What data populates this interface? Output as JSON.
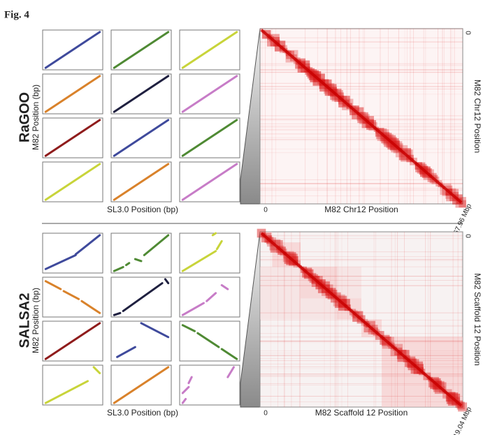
{
  "figure_label": "Fig. 4",
  "panels": [
    {
      "name": "RaGOO",
      "dotplot": {
        "y_label": "M82 Position (bp)",
        "x_label": "SL3.0 Position (bp)"
      },
      "heatmap": {
        "x_label": "M82 Chr12 Position",
        "y_label": "M82 Chr12 Position",
        "origin_x": "0",
        "origin_y": "0",
        "end_label": "67.96 Mbp"
      }
    },
    {
      "name": "SALSA2",
      "dotplot": {
        "y_label": "M82 Position (bp)",
        "x_label": "SL3.0 Position (bp)"
      },
      "heatmap": {
        "x_label": "M82 Scaffold 12 Position",
        "y_label": "M82 Scaffold 12 Position",
        "origin_x": "0",
        "origin_y": "0",
        "end_label": "19.04 Mbp"
      }
    }
  ]
}
